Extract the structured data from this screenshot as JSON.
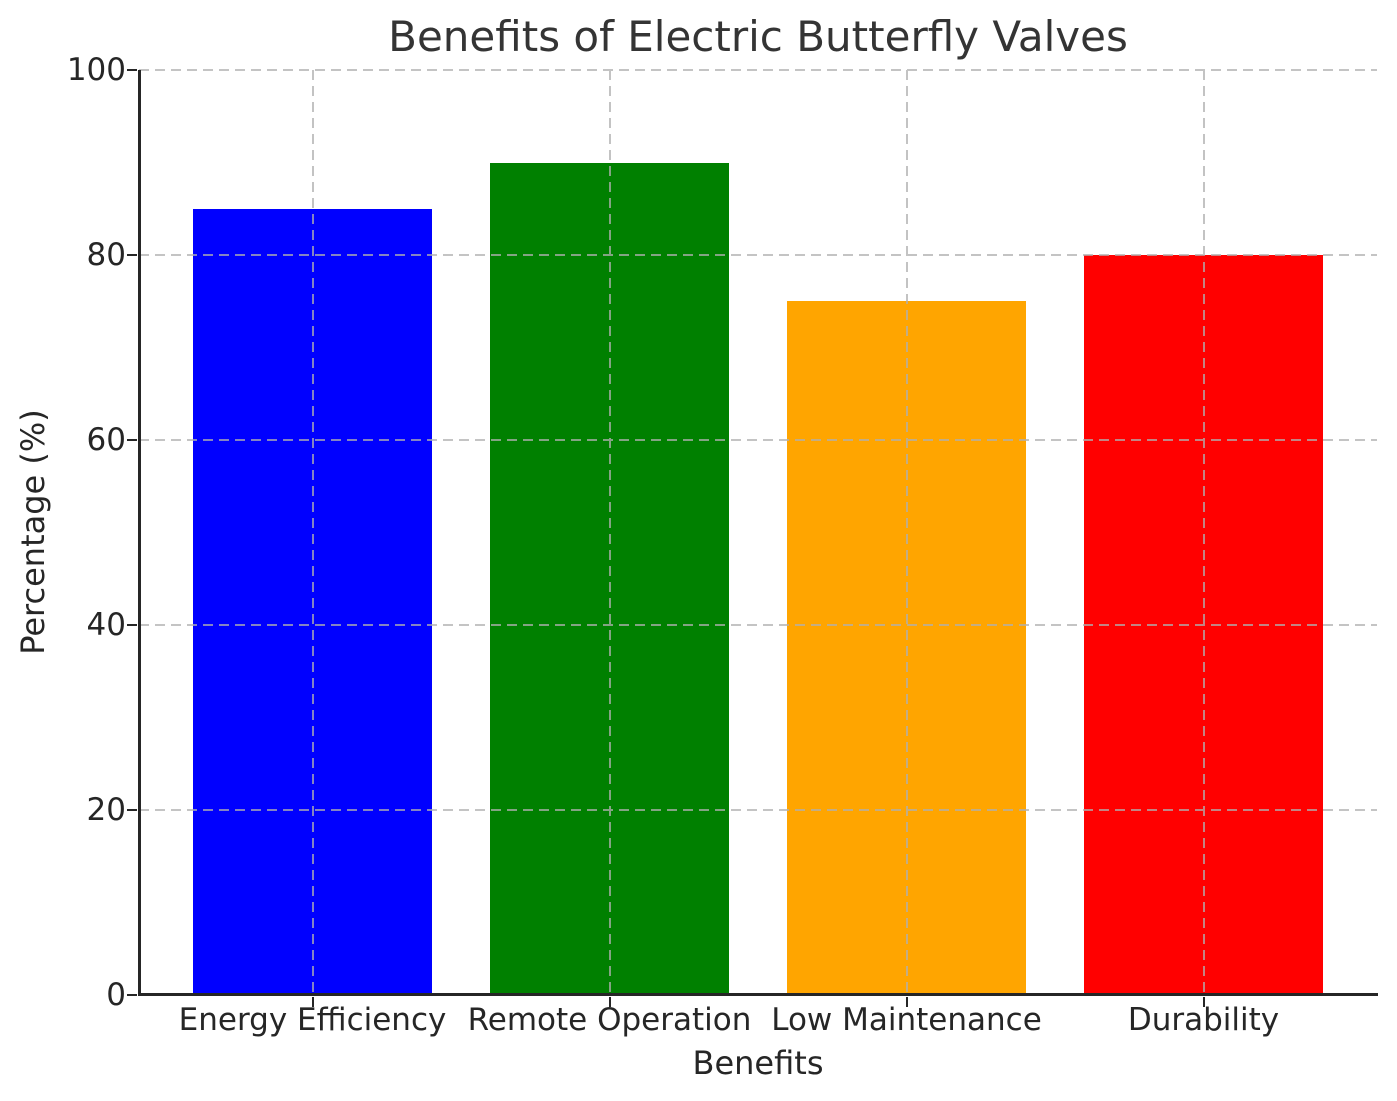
{
  "chart_data": {
    "type": "bar",
    "title": "Benefits of Electric Butterfly Valves",
    "xlabel": "Benefits",
    "ylabel": "Percentage (%)",
    "categories": [
      "Energy Efficiency",
      "Remote Operation",
      "Low Maintenance",
      "Durability"
    ],
    "values": [
      85,
      90,
      75,
      80
    ],
    "bar_colors": [
      "#0000ff",
      "#008000",
      "#ffa500",
      "#ff0000"
    ],
    "ylim": [
      0,
      100
    ],
    "yticks": [
      0,
      20,
      40,
      60,
      80,
      100
    ],
    "grid": {
      "style": "dashed",
      "color": "#b0b0b0",
      "axes": "both",
      "above_bars": true
    },
    "legend_position": "none",
    "text_color": "#262626"
  }
}
